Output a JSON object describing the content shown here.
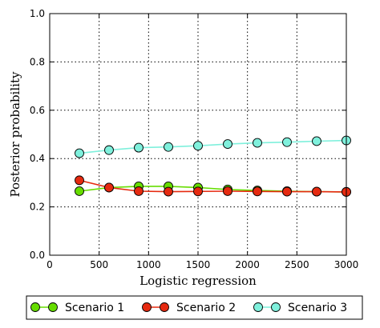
{
  "chart_data": {
    "type": "line",
    "xlabel": "Logistic regression",
    "ylabel": "Posterior probability",
    "xlim": [
      0,
      3000
    ],
    "ylim": [
      0.0,
      1.0
    ],
    "xticks": [
      "0",
      "500",
      "1000",
      "1500",
      "2000",
      "2500",
      "3000"
    ],
    "yticks": [
      "0.0",
      "0.2",
      "0.4",
      "0.6",
      "0.8",
      "1.0"
    ],
    "grid": true,
    "legend_position": "bottom",
    "x": [
      300,
      600,
      900,
      1200,
      1500,
      1800,
      2100,
      2400,
      2700,
      3000
    ],
    "series": [
      {
        "name": "Scenario 1",
        "color": "#66dd00",
        "values": [
          0.265,
          0.28,
          0.285,
          0.285,
          0.28,
          0.272,
          0.268,
          0.265,
          0.263,
          0.262
        ]
      },
      {
        "name": "Scenario 2",
        "color": "#e62a10",
        "values": [
          0.31,
          0.28,
          0.265,
          0.263,
          0.264,
          0.265,
          0.264,
          0.263,
          0.263,
          0.262
        ]
      },
      {
        "name": "Scenario 3",
        "color": "#7ff0dc",
        "values": [
          0.422,
          0.435,
          0.445,
          0.448,
          0.453,
          0.46,
          0.465,
          0.468,
          0.472,
          0.475
        ]
      }
    ]
  }
}
